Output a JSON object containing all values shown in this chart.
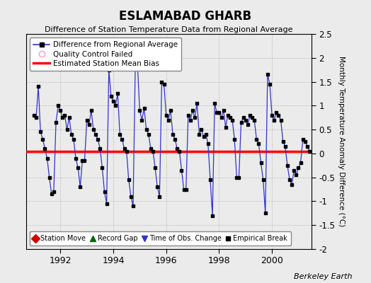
{
  "title": "ESLAMABAD GHARB",
  "subtitle": "Difference of Station Temperature Data from Regional Average",
  "ylabel": "Monthly Temperature Anomaly Difference (°C)",
  "bias": 0.05,
  "ylim": [
    -2.0,
    2.5
  ],
  "yticks": [
    -2.0,
    -1.5,
    -1.0,
    -0.5,
    0.0,
    0.5,
    1.0,
    1.5,
    2.0,
    2.5
  ],
  "ytick_labels": [
    "-2",
    "-1.5",
    "-1",
    "-0.5",
    "0",
    "0.5",
    "1",
    "1.5",
    "2",
    "2.5"
  ],
  "xlim": [
    1990.7,
    2001.5
  ],
  "xticks": [
    1992,
    1994,
    1996,
    1998,
    2000
  ],
  "background_color": "#ebebeb",
  "line_color": "#3333cc",
  "marker_color": "#000000",
  "bias_color": "#ff0000",
  "credit": "Berkeley Earth",
  "values": [
    0.8,
    0.75,
    1.4,
    0.45,
    0.3,
    0.1,
    -0.1,
    -0.5,
    -0.85,
    -0.8,
    0.65,
    1.0,
    0.9,
    0.75,
    0.8,
    0.5,
    0.75,
    0.4,
    0.3,
    -0.1,
    -0.3,
    -0.7,
    -0.15,
    -0.15,
    0.7,
    0.6,
    0.9,
    0.5,
    0.4,
    0.3,
    0.1,
    -0.3,
    -0.8,
    -1.05,
    1.75,
    1.2,
    1.1,
    1.0,
    1.25,
    0.4,
    0.3,
    0.1,
    0.05,
    -0.55,
    -0.9,
    -1.1,
    1.85,
    1.85,
    0.9,
    0.7,
    0.95,
    0.5,
    0.4,
    0.1,
    0.05,
    -0.3,
    -0.7,
    -0.9,
    1.5,
    1.45,
    0.8,
    0.7,
    0.9,
    0.4,
    0.3,
    0.1,
    0.05,
    -0.35,
    -0.75,
    -0.75,
    0.8,
    0.7,
    0.9,
    0.75,
    1.05,
    0.4,
    0.5,
    0.35,
    0.4,
    0.2,
    -0.55,
    -1.3,
    1.05,
    0.85,
    0.85,
    0.75,
    0.9,
    0.55,
    0.8,
    0.75,
    0.7,
    0.3,
    -0.5,
    -0.5,
    0.65,
    0.75,
    0.7,
    0.6,
    0.8,
    0.75,
    0.7,
    0.3,
    0.2,
    -0.2,
    -0.55,
    -1.25,
    1.65,
    1.45,
    0.8,
    0.7,
    0.85,
    0.8,
    0.7,
    0.25,
    0.15,
    -0.25,
    -0.55,
    -0.65,
    -0.35,
    -0.45,
    -0.3,
    -0.2,
    0.3,
    0.25,
    0.15,
    0.05
  ],
  "start_year": 1991,
  "start_month": 1
}
